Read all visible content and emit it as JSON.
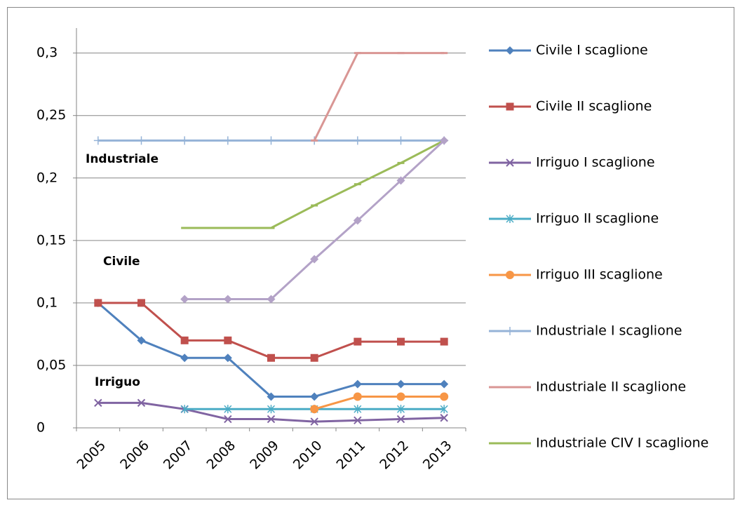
{
  "chart_data": {
    "type": "line",
    "categories": [
      "2005",
      "2006",
      "2007",
      "2008",
      "2009",
      "2010",
      "2011",
      "2012",
      "2013"
    ],
    "series": [
      {
        "name": "Civile I scaglione",
        "color": "#4f81bd",
        "marker": "diamond",
        "values": [
          0.1,
          0.07,
          0.056,
          0.056,
          0.025,
          0.025,
          0.035,
          0.035,
          0.035
        ]
      },
      {
        "name": "Civile II scaglione",
        "color": "#c0504d",
        "marker": "square",
        "values": [
          0.1,
          0.1,
          0.07,
          0.07,
          0.056,
          0.056,
          0.069,
          0.069,
          0.069
        ]
      },
      {
        "name": "Irriguo I scaglione",
        "color": "#8064a2",
        "marker": "x",
        "values": [
          0.02,
          0.02,
          0.015,
          0.007,
          0.007,
          0.005,
          0.006,
          0.007,
          0.008
        ]
      },
      {
        "name": "Irriguo II scaglione",
        "color": "#4bacc6",
        "marker": "star",
        "values": [
          null,
          null,
          0.015,
          0.015,
          0.015,
          0.015,
          0.015,
          0.015,
          0.015
        ]
      },
      {
        "name": "Irriguo III scaglione",
        "color": "#f79646",
        "marker": "circle",
        "values": [
          null,
          null,
          null,
          null,
          null,
          0.015,
          0.025,
          0.025,
          0.025
        ]
      },
      {
        "name": "Industriale I scaglione",
        "color": "#95b3d7",
        "marker": "plus",
        "values": [
          0.23,
          0.23,
          0.23,
          0.23,
          0.23,
          0.23,
          0.23,
          0.23,
          0.23
        ]
      },
      {
        "name": "Industriale II scaglione",
        "color": "#d99694",
        "marker": "dash",
        "values": [
          null,
          null,
          null,
          null,
          null,
          0.23,
          0.3,
          0.3,
          0.3
        ]
      },
      {
        "name": "Industriale CIV I scaglione",
        "color": "#9bbb59",
        "marker": "dash",
        "values": [
          null,
          null,
          0.16,
          0.16,
          0.16,
          0.178,
          0.195,
          0.212,
          0.23
        ]
      },
      {
        "color": "#b3a2c7",
        "marker": "diamond",
        "values": [
          null,
          null,
          0.103,
          0.103,
          0.103,
          0.135,
          0.166,
          0.198,
          0.23
        ]
      }
    ],
    "annotations": [
      "Industriale",
      "Civile",
      "Irriguo"
    ],
    "ylim": [
      0,
      0.32
    ],
    "yticks": [
      0,
      {
        "value": 0.05,
        "label": "0,05"
      },
      {
        "value": 0.1,
        "label": "0,1"
      },
      {
        "value": 0.15,
        "label": "0,15"
      },
      {
        "value": 0.2,
        "label": "0,2"
      },
      {
        "value": 0.25,
        "label": "0,25"
      },
      {
        "value": 0.3,
        "label": "0,3"
      }
    ],
    "grid": true,
    "legend": "right"
  }
}
